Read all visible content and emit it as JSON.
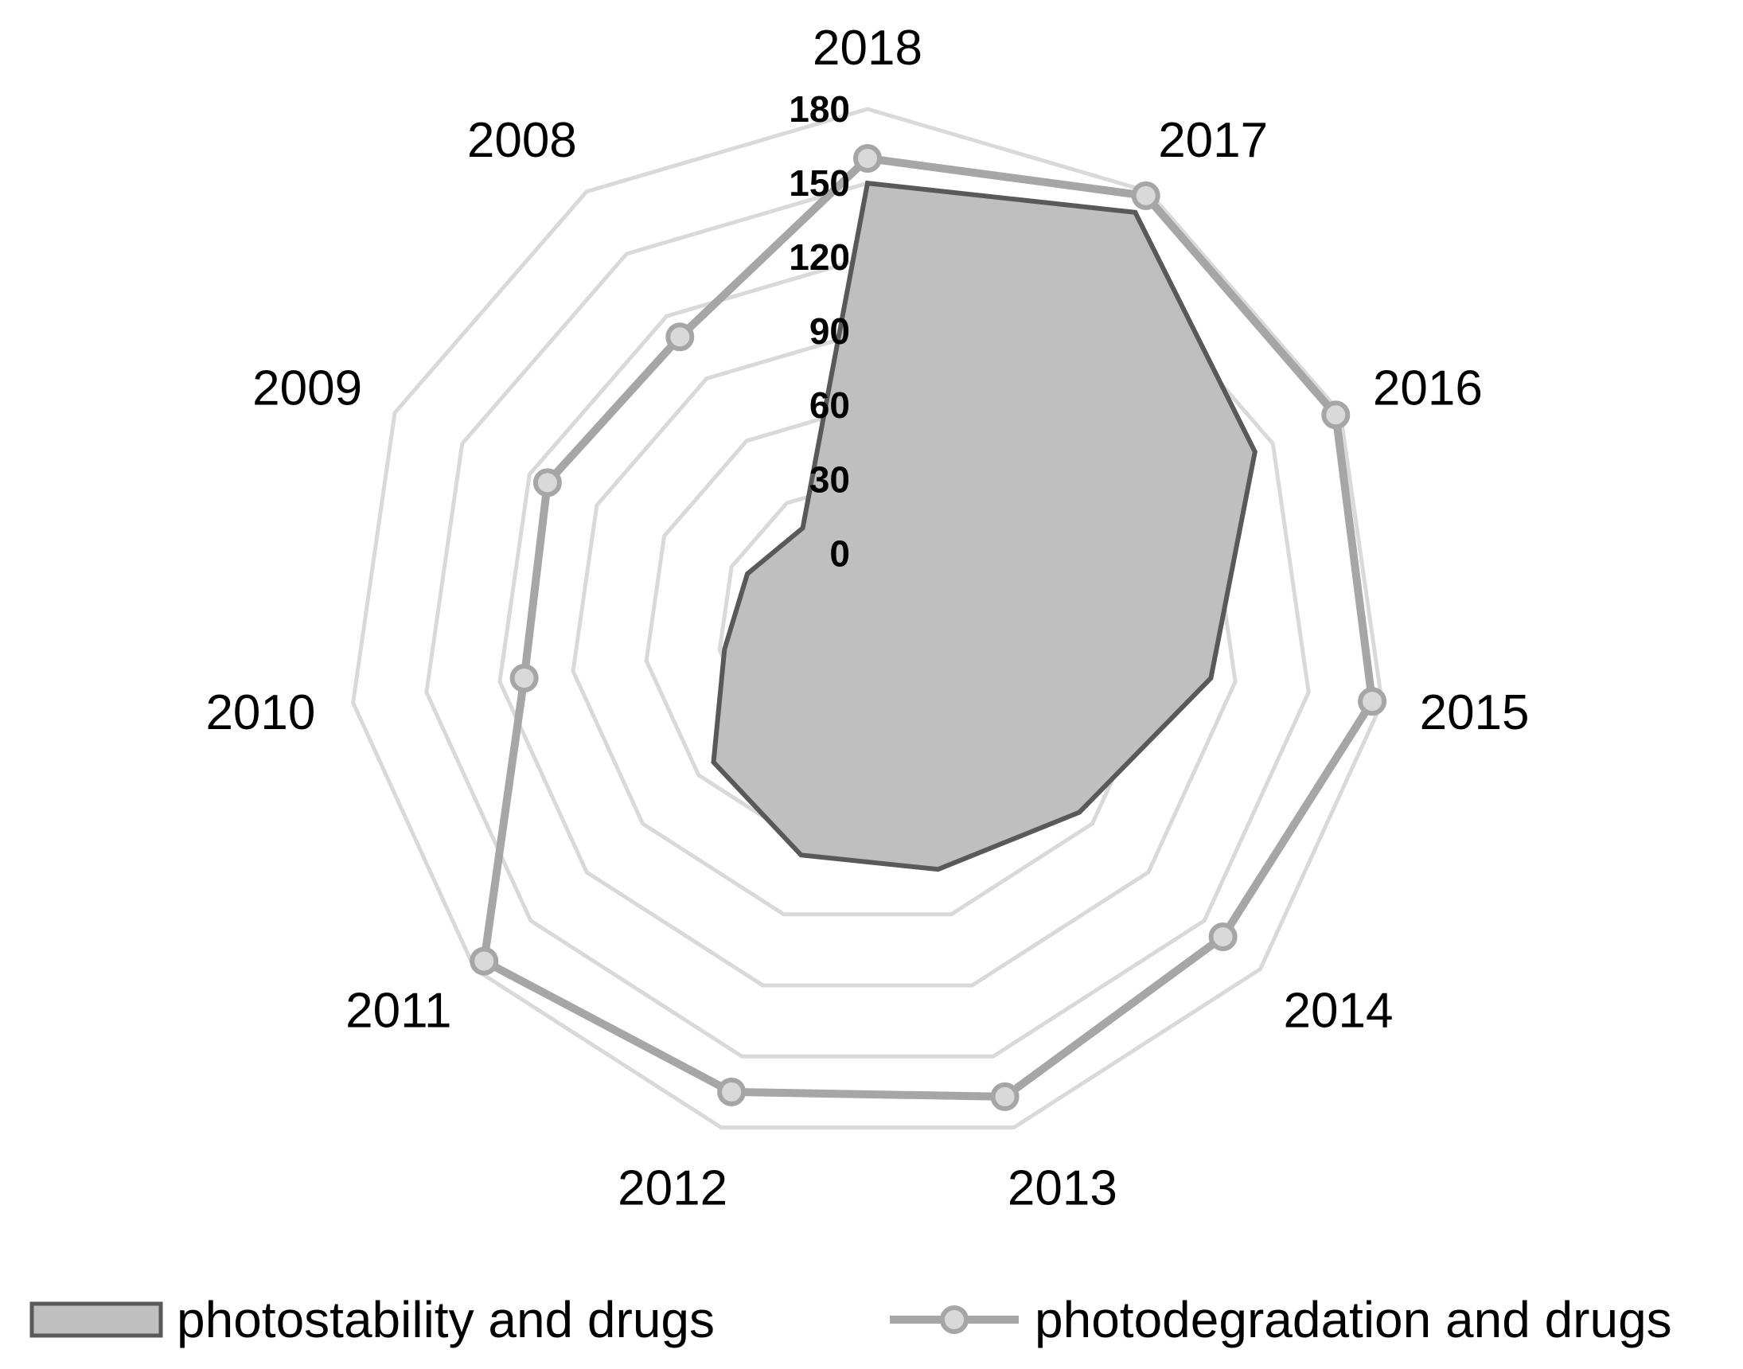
{
  "chart_data": {
    "type": "radar",
    "categories": [
      "2018",
      "2017",
      "2016",
      "2015",
      "2014",
      "2013",
      "2012",
      "2011",
      "2010",
      "2009",
      "2008"
    ],
    "rlim": [
      0,
      180
    ],
    "rticks": [
      "0",
      "30",
      "60",
      "90",
      "120",
      "150",
      "180"
    ],
    "grid": true,
    "legend_position": "bottom",
    "series": [
      {
        "name": "photostability and drugs",
        "style": "filled area",
        "values": [
          150,
          170,
          142,
          110,
          83,
          71,
          65,
          52,
          28,
          23,
          18
        ]
      },
      {
        "name": "photodegradation and drugs",
        "style": "line with markers",
        "values": [
          160,
          178,
          178,
          176,
          160,
          167,
          165,
          175,
          110,
          112,
          110
        ]
      }
    ],
    "colors": {
      "grid": "#d9d9d9",
      "area_fill": "#bfbfbf",
      "area_stroke": "#595959",
      "line": "#a6a6a6",
      "marker_fill": "#d9d9d9"
    }
  },
  "legend": {
    "items": [
      {
        "label": "photostability and drugs"
      },
      {
        "label": "photodegradation and drugs"
      }
    ]
  }
}
